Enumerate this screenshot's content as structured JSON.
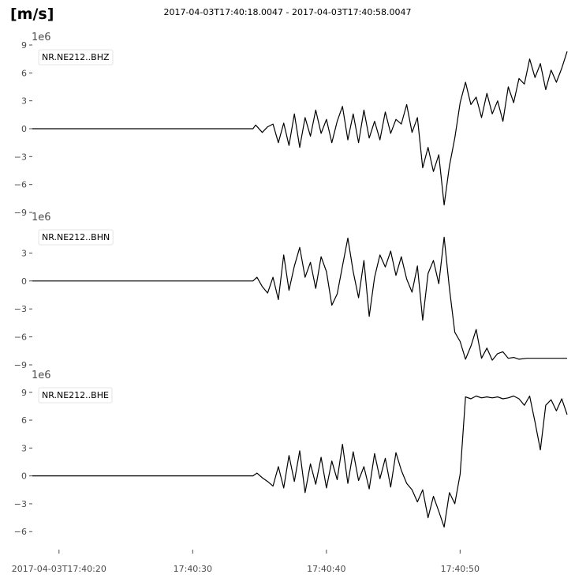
{
  "header": {
    "unit": "[m/s]",
    "time_range": "2017-04-03T17:40:18.0047  -  2017-04-03T17:40:58.0047"
  },
  "chart_data": {
    "type": "line",
    "x_unit": "seconds after 2017-04-03T17:40:18.0047",
    "xlim": [
      0,
      40
    ],
    "x_ticks": [
      {
        "value": 1.9953,
        "label": "2017-04-03T17:40:20"
      },
      {
        "value": 11.9953,
        "label": "17:40:30"
      },
      {
        "value": 21.9953,
        "label": "17:40:40"
      },
      {
        "value": 31.9953,
        "label": "17:40:50"
      }
    ],
    "line_color": "#000000",
    "grid": false,
    "panels": [
      {
        "station": "NR.NE212..BHZ",
        "multiplier": "1e6",
        "ylim": [
          -9,
          9
        ],
        "y_ticks": [
          -9,
          -6,
          -3,
          0,
          3,
          6,
          9
        ],
        "x": [
          0,
          16.5,
          16.7,
          17.2,
          17.6,
          18.0,
          18.4,
          18.8,
          19.2,
          19.6,
          20.0,
          20.4,
          20.8,
          21.2,
          21.6,
          22.0,
          22.4,
          22.8,
          23.2,
          23.6,
          24.0,
          24.4,
          24.8,
          25.2,
          25.6,
          26.0,
          26.4,
          26.8,
          27.2,
          27.6,
          28.0,
          28.4,
          28.8,
          29.2,
          29.6,
          30.0,
          30.4,
          30.8,
          31.2,
          31.6,
          32.0,
          32.4,
          32.8,
          33.2,
          33.6,
          34.0,
          34.4,
          34.8,
          35.2,
          35.6,
          36.0,
          36.4,
          36.8,
          37.2,
          37.6,
          38.0,
          38.4,
          38.8,
          39.2,
          39.6,
          40.0
        ],
        "y": [
          0,
          0,
          0.4,
          -0.4,
          0.2,
          0.5,
          -1.5,
          0.6,
          -1.8,
          1.6,
          -2.0,
          1.2,
          -0.8,
          2.0,
          -0.5,
          1.0,
          -1.5,
          0.8,
          2.4,
          -1.2,
          1.6,
          -1.5,
          2.0,
          -1.0,
          0.8,
          -1.2,
          1.8,
          -0.5,
          1.0,
          0.5,
          2.6,
          -0.4,
          1.2,
          -4.2,
          -2.0,
          -4.6,
          -2.8,
          -8.2,
          -4.0,
          -1.0,
          2.8,
          5.0,
          2.6,
          3.4,
          1.2,
          3.8,
          1.6,
          3.0,
          0.8,
          4.5,
          2.8,
          5.4,
          4.8,
          7.5,
          5.5,
          7.0,
          4.2,
          6.3,
          5.0,
          6.5,
          8.3
        ]
      },
      {
        "station": "NR.NE212..BHN",
        "multiplier": "1e6",
        "ylim": [
          -9,
          6
        ],
        "y_ticks": [
          -9,
          -6,
          -3,
          0,
          3
        ],
        "x": [
          0,
          16.5,
          16.8,
          17.2,
          17.6,
          18.0,
          18.4,
          18.8,
          19.2,
          19.6,
          20.0,
          20.4,
          20.8,
          21.2,
          21.6,
          22.0,
          22.4,
          22.8,
          23.2,
          23.6,
          24.0,
          24.4,
          24.8,
          25.2,
          25.6,
          26.0,
          26.4,
          26.8,
          27.2,
          27.6,
          28.0,
          28.4,
          28.8,
          29.2,
          29.6,
          30.0,
          30.4,
          30.8,
          31.2,
          31.6,
          32.0,
          32.4,
          32.8,
          33.2,
          33.6,
          34.0,
          34.4,
          34.8,
          35.2,
          35.6,
          36.0,
          36.4,
          37.0,
          38.0,
          39.0,
          40.0
        ],
        "y": [
          0,
          0,
          0.4,
          -0.6,
          -1.3,
          0.4,
          -2.0,
          2.8,
          -1.0,
          1.6,
          3.6,
          0.4,
          2.0,
          -0.8,
          2.6,
          1.0,
          -2.6,
          -1.4,
          1.6,
          4.6,
          1.0,
          -1.8,
          2.2,
          -3.8,
          0.4,
          2.8,
          1.5,
          3.2,
          0.6,
          2.6,
          0.2,
          -1.2,
          1.6,
          -4.2,
          0.8,
          2.2,
          -0.3,
          4.7,
          -0.8,
          -5.5,
          -6.5,
          -8.4,
          -7.0,
          -5.2,
          -8.3,
          -7.2,
          -8.5,
          -7.8,
          -7.6,
          -8.3,
          -8.2,
          -8.4,
          -8.3,
          -8.3,
          -8.3,
          -8.3
        ]
      },
      {
        "station": "NR.NE212..BHE",
        "multiplier": "1e6",
        "ylim": [
          -7,
          10
        ],
        "y_ticks": [
          -6,
          -3,
          0,
          3,
          6,
          9
        ],
        "x": [
          0,
          16.5,
          16.8,
          17.2,
          17.6,
          18.0,
          18.4,
          18.8,
          19.2,
          19.6,
          20.0,
          20.4,
          20.8,
          21.2,
          21.6,
          22.0,
          22.4,
          22.8,
          23.2,
          23.6,
          24.0,
          24.4,
          24.8,
          25.2,
          25.6,
          26.0,
          26.4,
          26.8,
          27.2,
          27.6,
          28.0,
          28.4,
          28.8,
          29.2,
          29.6,
          30.0,
          30.4,
          30.8,
          31.2,
          31.6,
          32.0,
          32.4,
          32.8,
          33.2,
          33.6,
          34.0,
          34.4,
          34.8,
          35.2,
          35.6,
          36.0,
          36.4,
          36.8,
          37.2,
          37.6,
          38.0,
          38.4,
          38.8,
          39.2,
          39.6,
          40.0
        ],
        "y": [
          0,
          0,
          0.3,
          -0.2,
          -0.6,
          -1.1,
          1.0,
          -1.3,
          2.2,
          -0.6,
          2.7,
          -1.8,
          1.3,
          -0.9,
          2.0,
          -1.3,
          1.6,
          -0.4,
          3.4,
          -0.8,
          2.6,
          -0.5,
          1.0,
          -1.4,
          2.4,
          -0.3,
          1.9,
          -1.2,
          2.5,
          0.6,
          -0.8,
          -1.5,
          -2.8,
          -1.5,
          -4.5,
          -2.2,
          -3.8,
          -5.5,
          -1.8,
          -3.0,
          0.2,
          8.5,
          8.3,
          8.6,
          8.4,
          8.5,
          8.4,
          8.5,
          8.3,
          8.4,
          8.6,
          8.3,
          7.6,
          8.6,
          5.8,
          2.8,
          7.6,
          8.2,
          7.0,
          8.3,
          6.6
        ]
      }
    ]
  }
}
